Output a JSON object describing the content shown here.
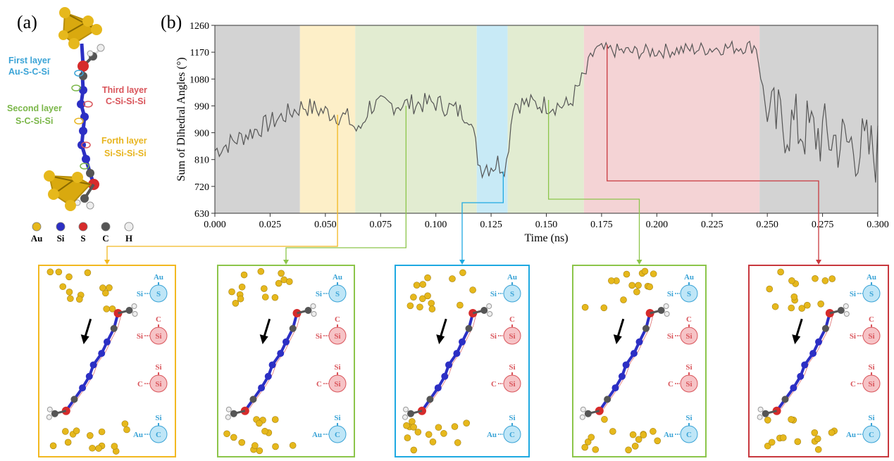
{
  "panel_labels": {
    "a": "(a)",
    "b": "(b)"
  },
  "colors": {
    "gray": "#d3d3d3",
    "yellow": "#fdefc8",
    "green": "#e2ecd1",
    "blue": "#c8eaf6",
    "red": "#f4d3d5",
    "yellow_frame": "#f2b820",
    "green_frame": "#8cc54a",
    "blue_frame": "#1ea9e1",
    "red_frame": "#c8383e",
    "au": "#e6b81c",
    "si": "#2c2fc4",
    "s": "#d62b2b",
    "c": "#555555",
    "h": "#eeeeee",
    "layer1": "#3aa3d6",
    "layer2": "#7ab648",
    "layer3": "#d9545a",
    "layer4": "#e8b520"
  },
  "molecule_labels": {
    "first": [
      "First layer",
      "Au-S-C-Si"
    ],
    "second": [
      "Second layer",
      "S-C-Si-Si"
    ],
    "third": [
      "Third layer",
      "C-Si-Si-Si"
    ],
    "forth": [
      "Forth layer",
      "Si-Si-Si-Si"
    ]
  },
  "legend_atoms": [
    {
      "label": "Au",
      "color": "#e6b81c"
    },
    {
      "label": "Si",
      "color": "#2c2fc4"
    },
    {
      "label": "S",
      "color": "#d62b2b"
    },
    {
      "label": "C",
      "color": "#555555"
    },
    {
      "label": "H",
      "color": "#eeeeee"
    }
  ],
  "chart_data": {
    "type": "line",
    "xlabel": "Time (ns)",
    "ylabel": "Sum of Dihedral Angles (°)",
    "xlim": [
      0.0,
      0.3
    ],
    "ylim": [
      630,
      1260
    ],
    "xticks": [
      0.0,
      0.025,
      0.05,
      0.075,
      0.1,
      0.125,
      0.15,
      0.175,
      0.2,
      0.225,
      0.25,
      0.275,
      0.3
    ],
    "xtick_labels": [
      "0.000",
      "0.025",
      "0.050",
      "0.075",
      "0.100",
      "0.125",
      "0.150",
      "0.175",
      "0.200",
      "0.225",
      "0.250",
      "0.275",
      "0.300"
    ],
    "yticks": [
      630,
      720,
      810,
      900,
      990,
      1080,
      1170,
      1260
    ],
    "ytick_labels": [
      "630",
      "720",
      "810",
      "900",
      "990",
      "1080",
      "1170",
      "1260"
    ],
    "regions": [
      {
        "x0": 0.0,
        "x1": 0.0385,
        "color": "gray"
      },
      {
        "x0": 0.0385,
        "x1": 0.0635,
        "color": "yellow"
      },
      {
        "x0": 0.0635,
        "x1": 0.1185,
        "color": "green"
      },
      {
        "x0": 0.1185,
        "x1": 0.1325,
        "color": "blue"
      },
      {
        "x0": 0.1325,
        "x1": 0.167,
        "color": "green"
      },
      {
        "x0": 0.167,
        "x1": 0.2465,
        "color": "red"
      },
      {
        "x0": 0.2465,
        "x1": 0.3,
        "color": "gray"
      }
    ],
    "series": [
      {
        "color": "#555555",
        "points": [
          [
            0.0,
            840
          ],
          [
            0.04,
            990
          ],
          [
            0.06,
            950
          ],
          [
            0.065,
            900
          ],
          [
            0.07,
            990
          ],
          [
            0.1,
            1000
          ],
          [
            0.115,
            960
          ],
          [
            0.12,
            790
          ],
          [
            0.132,
            800
          ],
          [
            0.135,
            1000
          ],
          [
            0.16,
            990
          ],
          [
            0.168,
            1100
          ],
          [
            0.172,
            1180
          ],
          [
            0.19,
            1170
          ],
          [
            0.245,
            1190
          ],
          [
            0.25,
            950
          ],
          [
            0.3,
            830
          ]
        ]
      }
    ]
  },
  "snapshots": [
    {
      "frame": "yellow_frame",
      "chain": [
        [
          "Au",
          "S",
          "Si"
        ],
        [
          "C",
          "Si",
          "Si"
        ],
        [
          "Si",
          "Si",
          "C"
        ],
        [
          "Si",
          "C",
          "Au"
        ]
      ]
    },
    {
      "frame": "green_frame",
      "chain": [
        [
          "Au",
          "S",
          "Si"
        ],
        [
          "C",
          "Si",
          "Si"
        ],
        [
          "Si",
          "Si",
          "C"
        ],
        [
          "Si",
          "C",
          "Au"
        ]
      ]
    },
    {
      "frame": "blue_frame",
      "chain": [
        [
          "Au",
          "S",
          "Si"
        ],
        [
          "C",
          "Si",
          "Si"
        ],
        [
          "Si",
          "Si",
          "C"
        ],
        [
          "Si",
          "C",
          "Au"
        ]
      ]
    },
    {
      "frame": "green_frame",
      "chain": [
        [
          "Au",
          "S",
          "Si"
        ],
        [
          "C",
          "Si",
          "Si"
        ],
        [
          "Si",
          "Si",
          "C"
        ],
        [
          "Si",
          "C",
          "Au"
        ]
      ]
    },
    {
      "frame": "red_frame",
      "chain": [
        [
          "Au",
          "S",
          "Si"
        ],
        [
          "C",
          "Si",
          "Si"
        ],
        [
          "Si",
          "Si",
          "C"
        ],
        [
          "Si",
          "C",
          "Au"
        ]
      ]
    }
  ]
}
